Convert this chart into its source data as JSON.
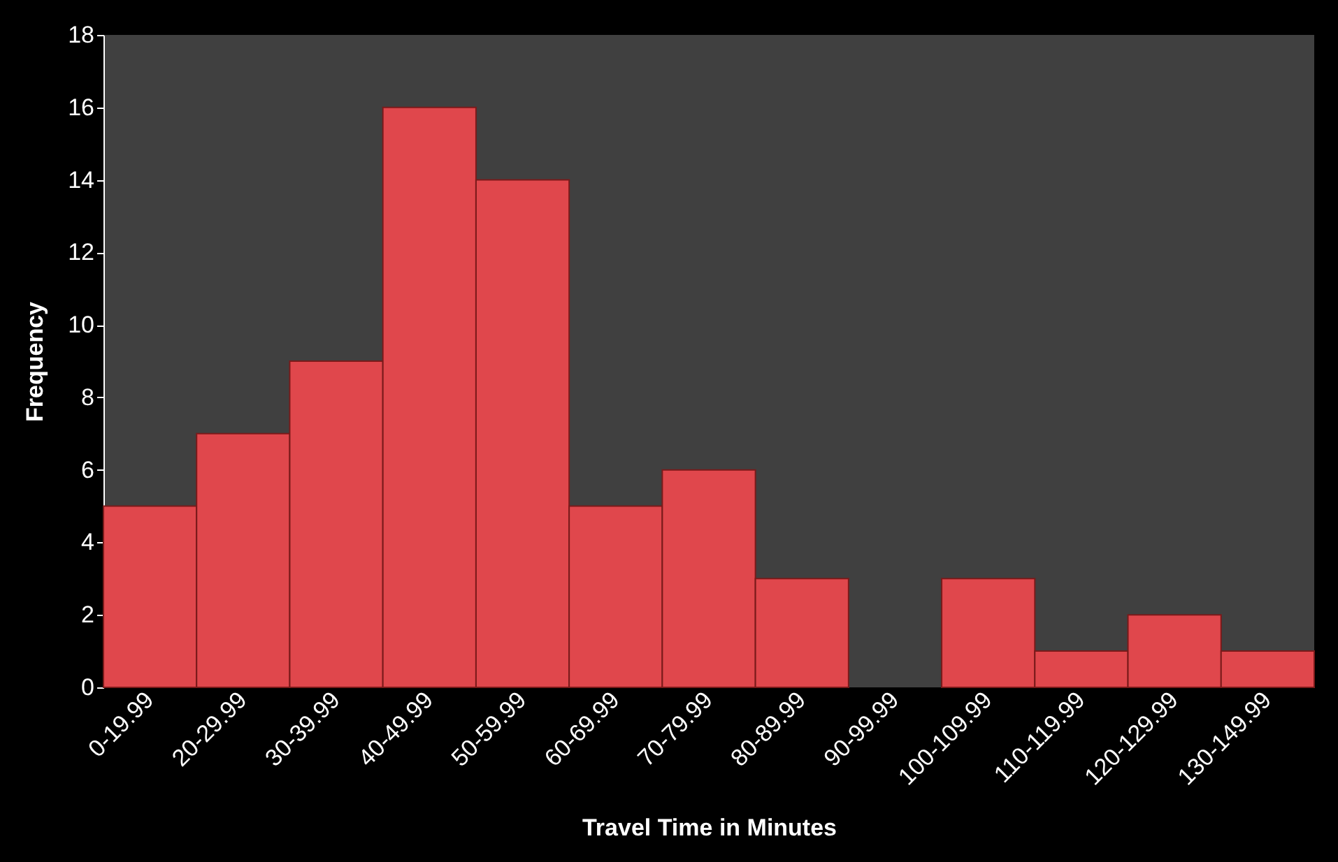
{
  "chart_data": {
    "type": "bar",
    "xlabel": "Travel Time in Minutes",
    "ylabel": "Frequency",
    "categories": [
      "0-19.99",
      "20-29.99",
      "30-39.99",
      "40-49.99",
      "50-59.99",
      "60-69.99",
      "70-79.99",
      "80-89.99",
      "90-99.99",
      "100-109.99",
      "110-119.99",
      "120-129.99",
      "130-149.99"
    ],
    "values": [
      5,
      7,
      9,
      16,
      14,
      5,
      6,
      3,
      0,
      3,
      1,
      2,
      1
    ],
    "color": "#e0474c",
    "ylim": [
      0,
      18
    ],
    "yticks": [
      0,
      2,
      4,
      6,
      8,
      10,
      12,
      14,
      16,
      18
    ]
  }
}
